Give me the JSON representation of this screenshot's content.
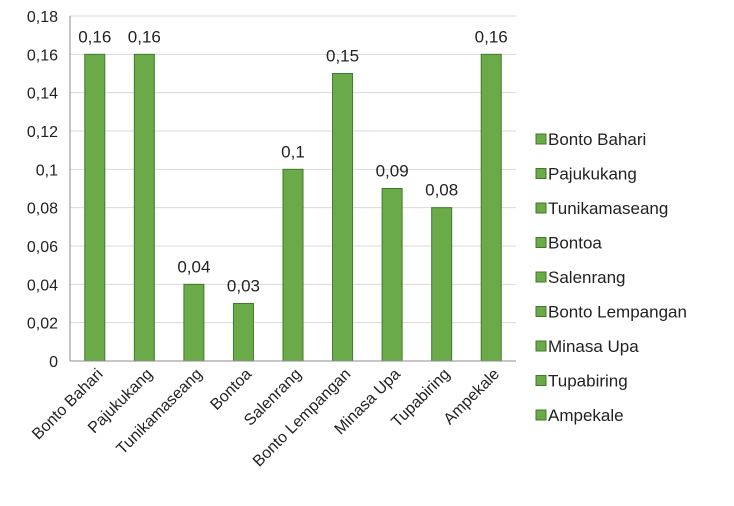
{
  "chart_data": {
    "type": "bar",
    "categories": [
      "Bonto Bahari",
      "Pajukukang",
      "Tunikamaseang",
      "Bontoa",
      "Salenrang",
      "Bonto Lempangan",
      "Minasa Upa",
      "Tupabiring",
      "Ampekale"
    ],
    "values": [
      0.16,
      0.16,
      0.04,
      0.03,
      0.1,
      0.15,
      0.09,
      0.08,
      0.16
    ],
    "data_labels": [
      "0,16",
      "0,16",
      "0,04",
      "0,03",
      "0,1",
      "0,15",
      "0,09",
      "0,08",
      "0,16"
    ],
    "y_ticks": [
      0,
      0.02,
      0.04,
      0.06,
      0.08,
      0.1,
      0.12,
      0.14,
      0.16,
      0.18
    ],
    "y_tick_labels": [
      "0",
      "0,02",
      "0,04",
      "0,06",
      "0,08",
      "0,1",
      "0,12",
      "0,14",
      "0,16",
      "0,18"
    ],
    "ylim": [
      0,
      0.18
    ],
    "title": "",
    "xlabel": "",
    "ylabel": "",
    "grid": true,
    "legend": {
      "position": "right",
      "entries": [
        "Bonto Bahari",
        "Pajukukang",
        "Tunikamaseang",
        "Bontoa",
        "Salenrang",
        "Bonto Lempangan",
        "Minasa Upa",
        "Tupabiring",
        "Ampekale"
      ]
    },
    "colors": {
      "bar_fill": "#6aaa48",
      "bar_stroke": "#3f7a2a",
      "grid": "#d9d9d9",
      "axis": "#8c8c8c"
    }
  }
}
